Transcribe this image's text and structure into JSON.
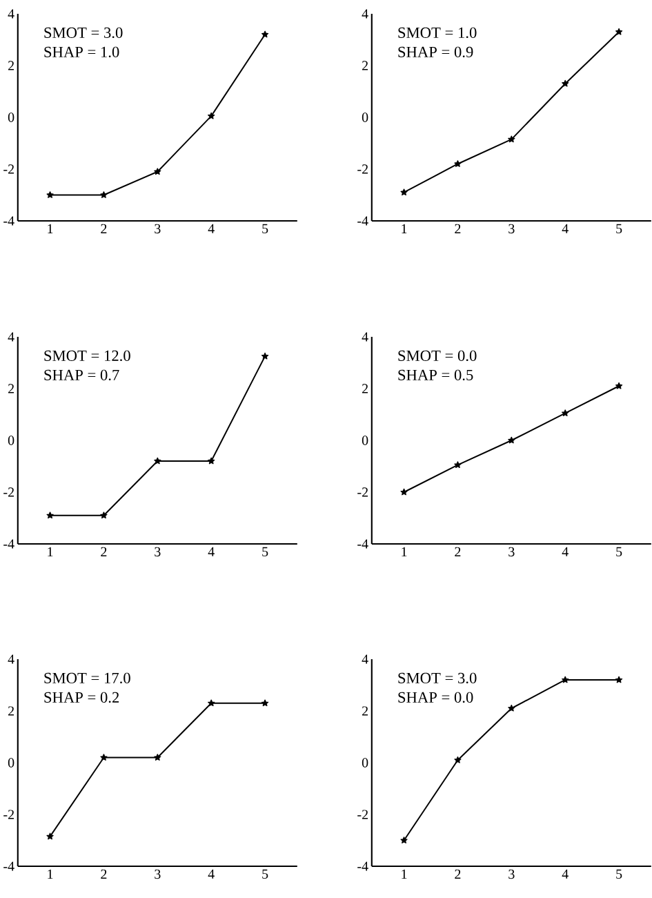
{
  "chart_data": [
    {
      "type": "line",
      "x": [
        1,
        2,
        3,
        4,
        5
      ],
      "values": [
        -3,
        -3,
        -2.1,
        0.05,
        3.2
      ],
      "color": "#000000",
      "marker": "star",
      "line_style": "solid",
      "xlim": [
        0.4,
        5.6
      ],
      "ylim": [
        -4,
        4
      ],
      "xticks": [
        1,
        2,
        3,
        4,
        5
      ],
      "yticks": [
        -4,
        -2,
        0,
        2,
        4
      ],
      "grid": false,
      "annotations": [
        "SMOT = 3.0",
        "SHAP = 1.0"
      ]
    },
    {
      "type": "line",
      "x": [
        1,
        2,
        3,
        4,
        5
      ],
      "values": [
        -2.9,
        -1.8,
        -0.85,
        1.3,
        3.3
      ],
      "color": "#000000",
      "marker": "star",
      "line_style": "solid",
      "xlim": [
        0.4,
        5.6
      ],
      "ylim": [
        -4,
        4
      ],
      "xticks": [
        1,
        2,
        3,
        4,
        5
      ],
      "yticks": [
        -4,
        -2,
        0,
        2,
        4
      ],
      "grid": false,
      "annotations": [
        "SMOT = 1.0",
        "SHAP = 0.9"
      ]
    },
    {
      "type": "line",
      "x": [
        1,
        2,
        3,
        4,
        5
      ],
      "values": [
        -2.9,
        -2.9,
        -0.8,
        -0.8,
        3.25
      ],
      "color": "#000000",
      "marker": "star",
      "line_style": "solid",
      "xlim": [
        0.4,
        5.6
      ],
      "ylim": [
        -4,
        4
      ],
      "xticks": [
        1,
        2,
        3,
        4,
        5
      ],
      "yticks": [
        -4,
        -2,
        0,
        2,
        4
      ],
      "grid": false,
      "annotations": [
        "SMOT = 12.0",
        "SHAP =  0.7"
      ]
    },
    {
      "type": "line",
      "x": [
        1,
        2,
        3,
        4,
        5
      ],
      "values": [
        -2,
        -0.95,
        0,
        1.05,
        2.1
      ],
      "color": "#000000",
      "marker": "star",
      "line_style": "solid",
      "xlim": [
        0.4,
        5.6
      ],
      "ylim": [
        -4,
        4
      ],
      "xticks": [
        1,
        2,
        3,
        4,
        5
      ],
      "yticks": [
        -4,
        -2,
        0,
        2,
        4
      ],
      "grid": false,
      "annotations": [
        "SMOT = 0.0",
        "SHAP = 0.5"
      ]
    },
    {
      "type": "line",
      "x": [
        1,
        2,
        3,
        4,
        5
      ],
      "values": [
        -2.85,
        0.2,
        0.2,
        2.3,
        2.3
      ],
      "color": "#000000",
      "marker": "star",
      "line_style": "solid",
      "xlim": [
        0.4,
        5.6
      ],
      "ylim": [
        -4,
        4
      ],
      "xticks": [
        1,
        2,
        3,
        4,
        5
      ],
      "yticks": [
        -4,
        -2,
        0,
        2,
        4
      ],
      "grid": false,
      "annotations": [
        "SMOT = 17.0",
        "SHAP =  0.2"
      ]
    },
    {
      "type": "line",
      "x": [
        1,
        2,
        3,
        4,
        5
      ],
      "values": [
        -3,
        0.1,
        2.1,
        3.2,
        3.2
      ],
      "color": "#000000",
      "marker": "star",
      "line_style": "solid",
      "xlim": [
        0.4,
        5.6
      ],
      "ylim": [
        -4,
        4
      ],
      "xticks": [
        1,
        2,
        3,
        4,
        5
      ],
      "yticks": [
        -4,
        -2,
        0,
        2,
        4
      ],
      "grid": false,
      "annotations": [
        "SMOT = 3.0",
        "SHAP = 0.0"
      ]
    }
  ]
}
